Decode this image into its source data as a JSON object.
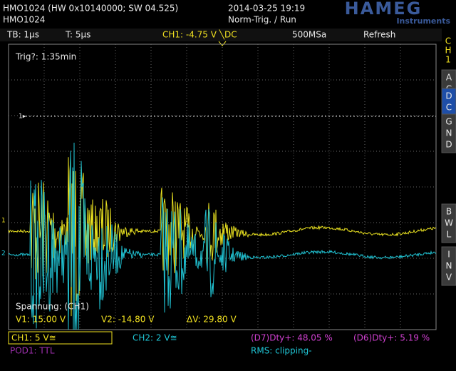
{
  "header": {
    "device_info": "HMO1024 (HW 0x10140000; SW 04.525)",
    "device_name": "HMO1024",
    "timestamp": "2014-03-25 19:19",
    "trigger_mode": "Norm-Trig. / Run",
    "logo": "HAMEG",
    "logo_sub": "Instruments"
  },
  "status_bar": {
    "timebase": "TB: 1µs",
    "trigger_time": "T: 5µs",
    "trigger_level": "CH1: -4.75 V ╲DC",
    "sample_rate": "500MSa",
    "acquisition": "Refresh"
  },
  "screen": {
    "trigger_info": "Trig?: 1:35min",
    "reference_marker": "1▸",
    "ch1_marker": "1",
    "ch2_marker": "2",
    "cursor_title": "Spannung: (CH1)",
    "v1": "V1: 15.00 V",
    "v2": "V2: -14.80 V",
    "delta_v": "ΔV: 29.80 V"
  },
  "side_menu": {
    "channel": [
      "C",
      "H",
      "1"
    ],
    "buttons": [
      [
        "A",
        "C"
      ],
      [
        "D",
        "C"
      ],
      [
        "G",
        "N",
        "D"
      ],
      [
        "B",
        "W",
        "L"
      ],
      [
        "I",
        "N",
        "V"
      ]
    ]
  },
  "footer": {
    "ch1_scale": "CH1: 5 V≅",
    "ch2_scale": "CH2: 2 V≅",
    "measure1": "(D7)Dty+: 48.05 %",
    "measure2": "(D6)Dty+: 5.19 %",
    "pod": "POD1: TTL",
    "measure3": "RMS: clipping-"
  }
}
